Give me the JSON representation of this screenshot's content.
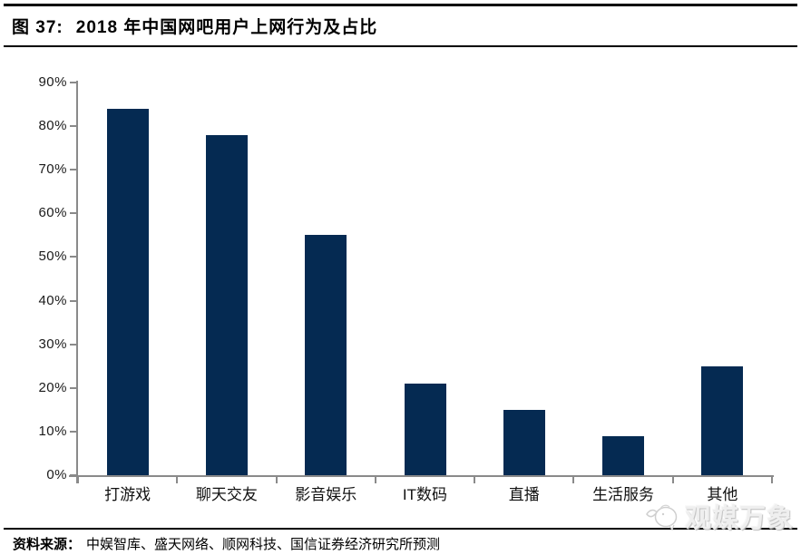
{
  "header": {
    "figure_label": "图 37:",
    "title": "2018 年中国网吧用户上网行为及占比"
  },
  "chart_data": {
    "type": "bar",
    "title": "2018 年中国网吧用户上网行为及占比",
    "categories": [
      "打游戏",
      "聊天交友",
      "影音娱乐",
      "IT数码",
      "直播",
      "生活服务",
      "其他"
    ],
    "values": [
      84,
      78,
      55,
      21,
      15,
      9,
      25
    ],
    "unit": "%",
    "xlabel": "",
    "ylabel": "",
    "ylim": [
      0,
      90
    ],
    "ytick_step": 10,
    "ytick_labels": [
      "0%",
      "10%",
      "20%",
      "30%",
      "40%",
      "50%",
      "60%",
      "70%",
      "80%",
      "90%"
    ],
    "grid": false,
    "legend": "none",
    "bar_color": "#052a52",
    "axis_color": "#8a8a8a"
  },
  "footer": {
    "source_label": "资料来源：",
    "source_text": "中娱智库、盛天网络、顺网科技、国信证券经济研究所预测"
  },
  "watermark": {
    "icon": "fish-icon",
    "text": "观媒万象"
  }
}
